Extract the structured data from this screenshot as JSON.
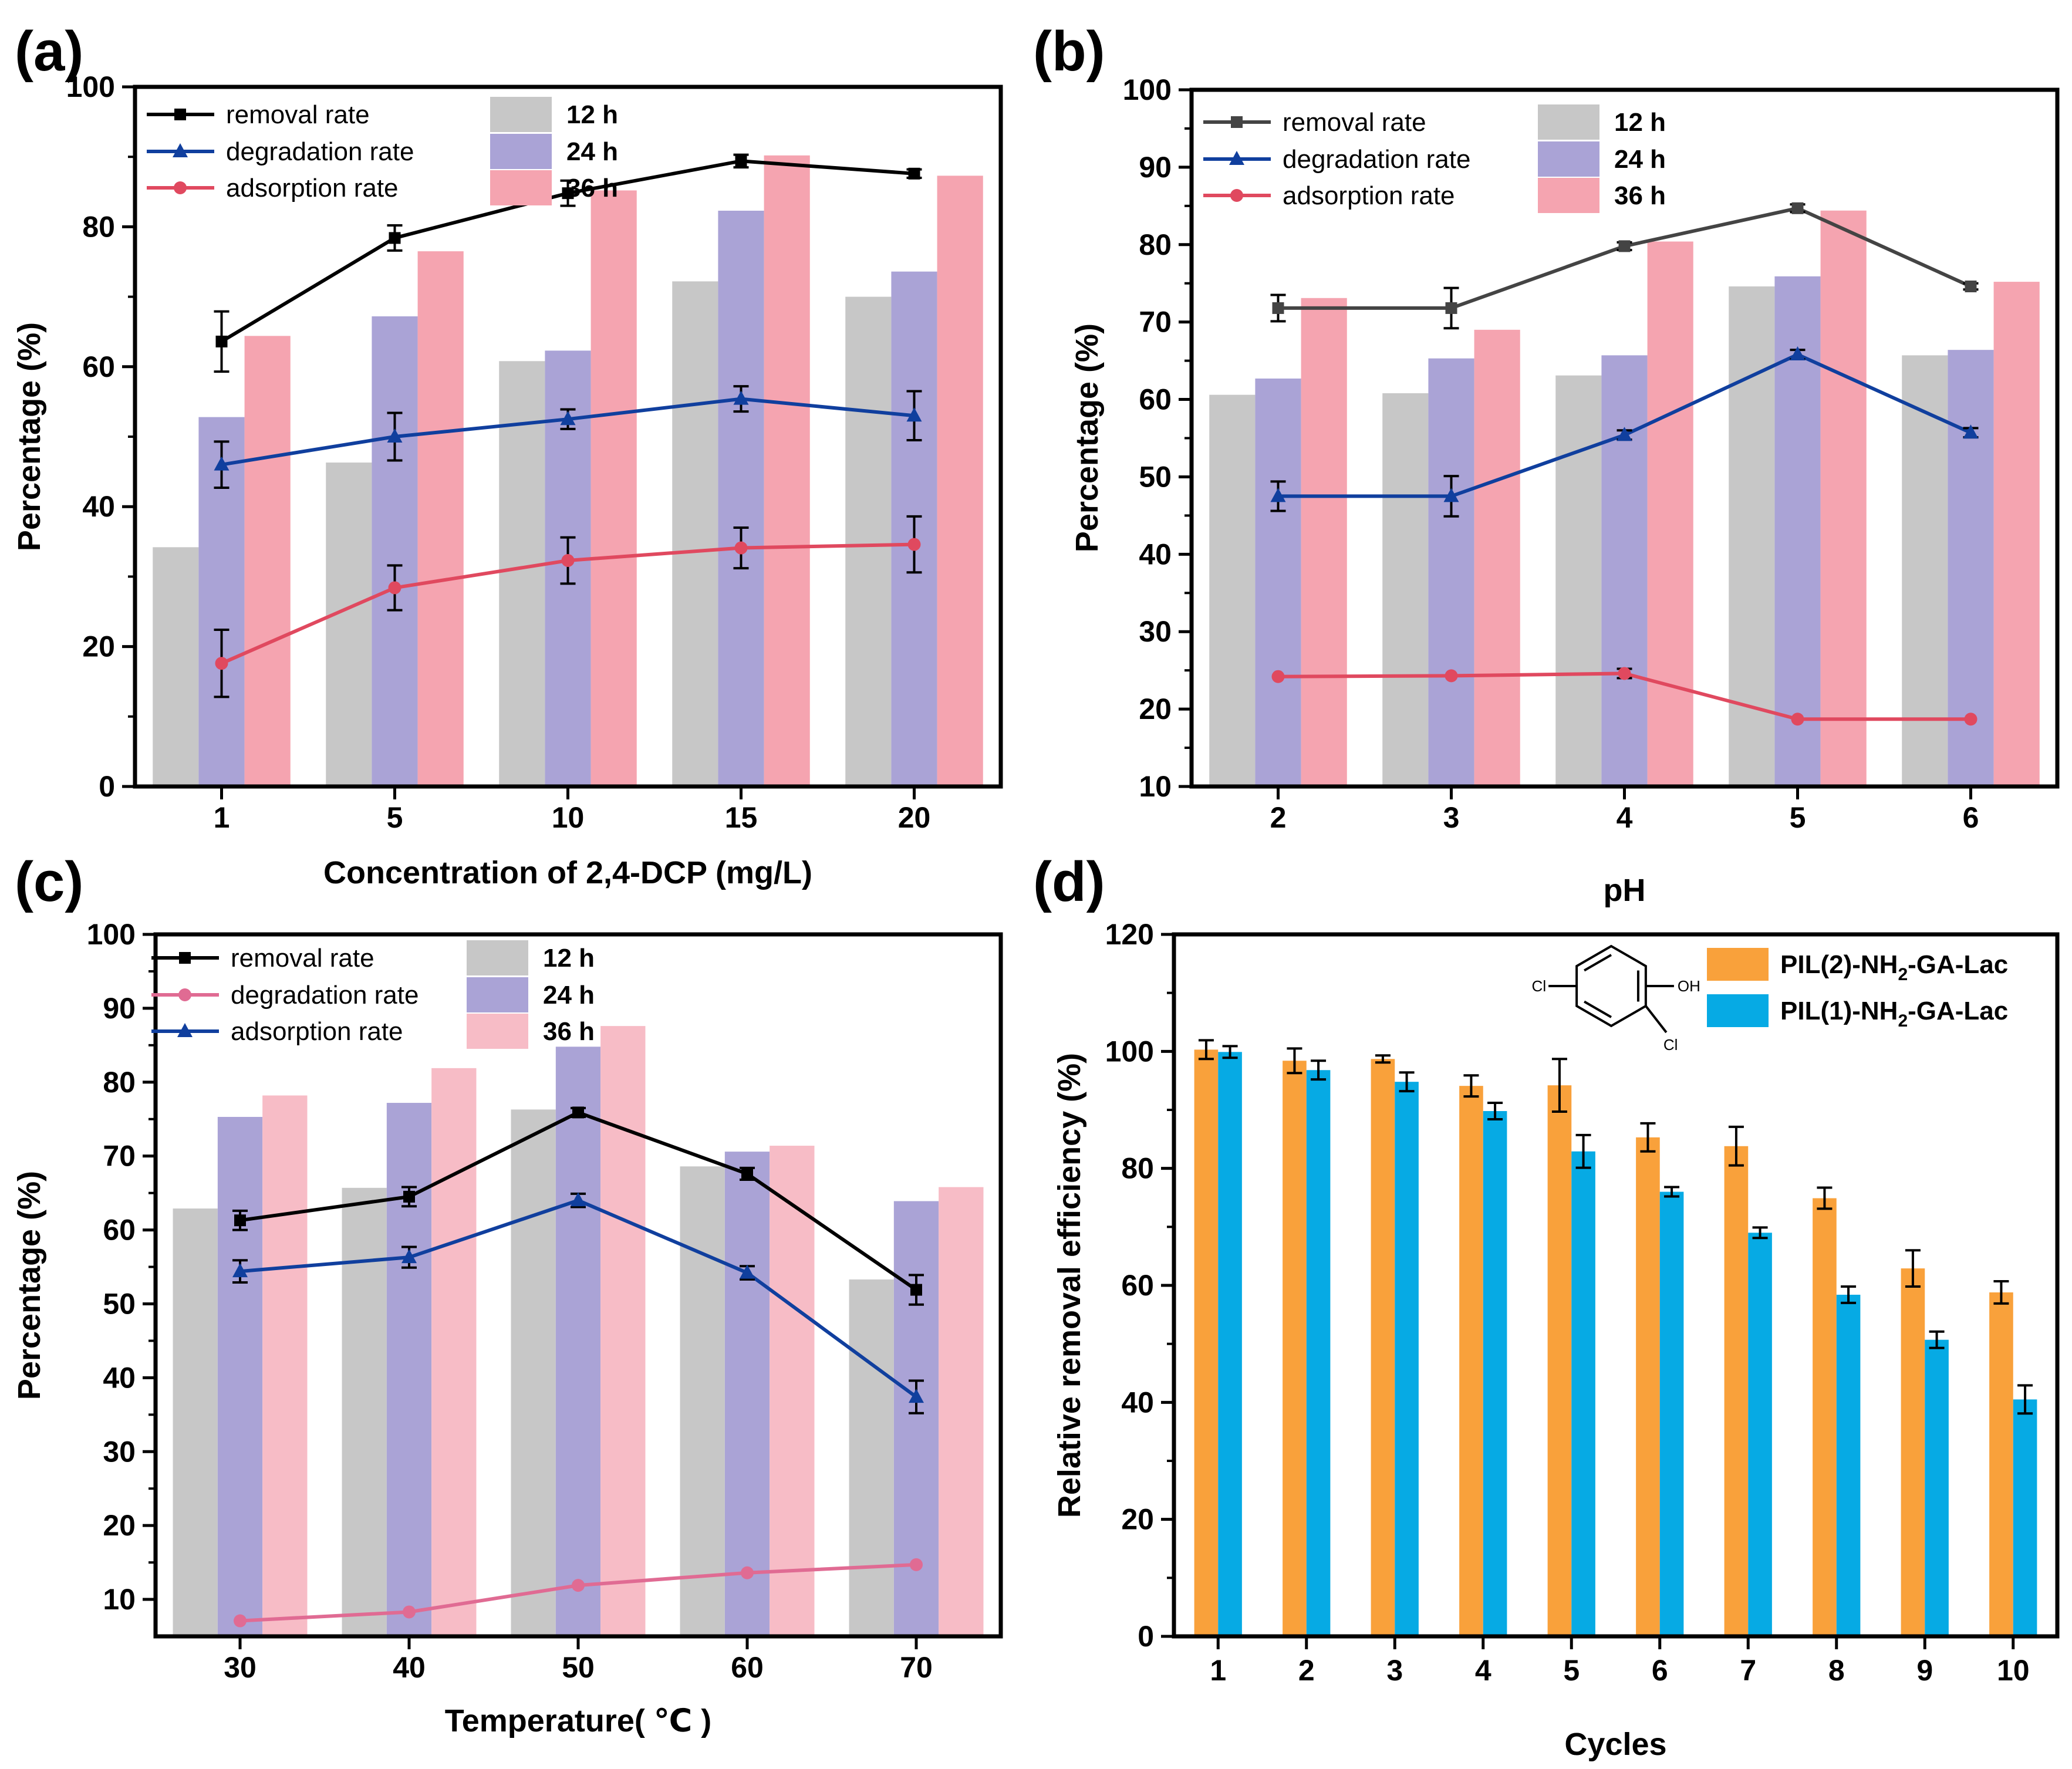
{
  "chart_data": [
    {
      "label": "(a)",
      "type": "bar",
      "xlabel": "Concentration of 2,4-DCP (mg/L)",
      "ylabel": "Percentage (%)",
      "categories": [
        "1",
        "5",
        "10",
        "15",
        "20"
      ],
      "ylim": [
        0,
        100
      ],
      "yticks": [
        "0",
        "20",
        "40",
        "60",
        "80",
        "100"
      ],
      "bar_series": [
        {
          "name": "12 h",
          "color": "#c7c7c7",
          "values": [
            34.2,
            46.3,
            60.8,
            72.2,
            70.0
          ]
        },
        {
          "name": "24 h",
          "color": "#aaa3d6",
          "values": [
            52.8,
            67.2,
            62.3,
            82.3,
            73.6
          ]
        },
        {
          "name": "36 h",
          "color": "#f5a4b0",
          "values": [
            64.4,
            76.5,
            85.2,
            90.2,
            87.3
          ]
        }
      ],
      "line_series": [
        {
          "name": "removal rate",
          "color": "#000000",
          "marker": "square",
          "values": [
            63.6,
            78.4,
            84.8,
            89.4,
            87.6
          ],
          "errors": [
            4.3,
            1.8,
            1.8,
            0.9,
            0.6
          ]
        },
        {
          "name": "degradation rate",
          "color": "#103f9e",
          "marker": "triangle",
          "values": [
            46.0,
            50.0,
            52.5,
            55.4,
            53.0
          ],
          "errors": [
            3.3,
            3.4,
            1.4,
            1.8,
            3.5
          ]
        },
        {
          "name": "adsorption rate",
          "color": "#e0495f",
          "marker": "circle",
          "values": [
            17.6,
            28.4,
            32.3,
            34.1,
            34.6
          ],
          "errors": [
            4.8,
            3.2,
            3.3,
            2.9,
            4.0
          ]
        }
      ]
    },
    {
      "label": "(b)",
      "type": "bar",
      "xlabel": "pH",
      "ylabel": "Percentage (%)",
      "categories": [
        "2",
        "3",
        "4",
        "5",
        "6"
      ],
      "ylim": [
        10,
        100
      ],
      "yticks": [
        "10",
        "20",
        "30",
        "40",
        "50",
        "60",
        "70",
        "80",
        "90",
        "100"
      ],
      "bar_series": [
        {
          "name": "12 h",
          "color": "#c7c7c7",
          "values": [
            60.6,
            60.8,
            63.1,
            74.6,
            65.7
          ]
        },
        {
          "name": "24 h",
          "color": "#aaa3d6",
          "values": [
            62.7,
            65.3,
            65.7,
            75.9,
            66.4
          ]
        },
        {
          "name": "36 h",
          "color": "#f5a4b0",
          "values": [
            73.1,
            69.0,
            80.4,
            84.4,
            75.2
          ]
        }
      ],
      "line_series": [
        {
          "name": "removal rate",
          "color": "#444444",
          "marker": "square",
          "values": [
            71.8,
            71.8,
            79.8,
            84.7,
            74.6
          ],
          "errors": [
            1.7,
            2.6,
            0.5,
            0.5,
            0.4
          ]
        },
        {
          "name": "degradation rate",
          "color": "#103f9e",
          "marker": "triangle",
          "values": [
            47.5,
            47.5,
            55.4,
            65.8,
            55.7
          ],
          "errors": [
            1.9,
            2.6,
            0.6,
            0.6,
            0.6
          ]
        },
        {
          "name": "adsorption rate",
          "color": "#e0495f",
          "marker": "circle",
          "values": [
            24.2,
            24.3,
            24.6,
            18.7,
            18.7
          ],
          "errors": [
            0.3,
            0.3,
            0.6,
            0.2,
            0.2
          ]
        }
      ]
    },
    {
      "label": "(c)",
      "type": "bar",
      "xlabel": "Temperature( ℃ )",
      "ylabel": "Percentage (%)",
      "categories": [
        "30",
        "40",
        "50",
        "60",
        "70"
      ],
      "ylim": [
        5,
        100
      ],
      "yticks": [
        "10",
        "20",
        "30",
        "40",
        "50",
        "60",
        "70",
        "80",
        "90",
        "100"
      ],
      "bar_series": [
        {
          "name": "12 h",
          "color": "#c7c7c7",
          "values": [
            62.9,
            65.7,
            76.3,
            68.6,
            53.3
          ]
        },
        {
          "name": "24 h",
          "color": "#aaa3d6",
          "values": [
            75.3,
            77.2,
            84.8,
            70.6,
            63.9
          ]
        },
        {
          "name": "36 h",
          "color": "#f7bcc6",
          "values": [
            78.2,
            81.9,
            87.6,
            71.4,
            65.8
          ]
        }
      ],
      "line_series": [
        {
          "name": "removal rate",
          "color": "#000000",
          "marker": "square",
          "values": [
            61.3,
            64.5,
            75.9,
            67.6,
            51.9
          ],
          "errors": [
            1.3,
            1.3,
            0.6,
            0.8,
            2.0
          ]
        },
        {
          "name": "degradation rate",
          "color": "#e06b93",
          "marker": "circle",
          "values": [
            7.1,
            8.3,
            11.9,
            13.6,
            14.7
          ],
          "errors": [
            0.2,
            0.2,
            0.2,
            0.2,
            0.2
          ]
        },
        {
          "name": "adsorption rate",
          "color": "#103f9e",
          "marker": "triangle",
          "values": [
            54.4,
            56.3,
            64.0,
            54.2,
            37.4
          ],
          "errors": [
            1.5,
            1.4,
            0.9,
            0.9,
            2.2
          ]
        }
      ]
    },
    {
      "label": "(d)",
      "type": "bar",
      "xlabel": "Cycles",
      "ylabel": "Relative removal efficiency (%)",
      "categories": [
        "1",
        "2",
        "3",
        "4",
        "5",
        "6",
        "7",
        "8",
        "9",
        "10"
      ],
      "ylim": [
        0,
        120
      ],
      "yticks": [
        "0",
        "20",
        "40",
        "60",
        "80",
        "100",
        "120"
      ],
      "bar_series": [
        {
          "name": "PIL(2)-NH2-GA-Lac",
          "color": "#f9a13b",
          "values": [
            100.3,
            98.4,
            98.7,
            94.1,
            94.2,
            85.3,
            83.8,
            74.9,
            62.9,
            58.8
          ],
          "errors": [
            1.6,
            2.1,
            0.6,
            1.8,
            4.5,
            2.4,
            3.3,
            1.8,
            3.1,
            1.9
          ]
        },
        {
          "name": "PIL(1)-NH2-GA-Lac",
          "color": "#06aae4",
          "values": [
            99.9,
            96.8,
            94.8,
            89.8,
            82.9,
            76.0,
            69.0,
            58.4,
            50.7,
            40.5
          ],
          "errors": [
            1.0,
            1.6,
            1.6,
            1.4,
            2.8,
            0.8,
            0.9,
            1.4,
            1.4,
            2.4
          ]
        }
      ],
      "legend_labels": [
        {
          "prefix": "PIL(2)-NH",
          "sub": "2",
          "suffix": "-GA-Lac"
        },
        {
          "prefix": "PIL(1)-NH",
          "sub": "2",
          "suffix": "-GA-Lac"
        }
      ],
      "structure_labels": {
        "left": "Cl",
        "right": "OH",
        "bottom": "Cl"
      }
    }
  ]
}
